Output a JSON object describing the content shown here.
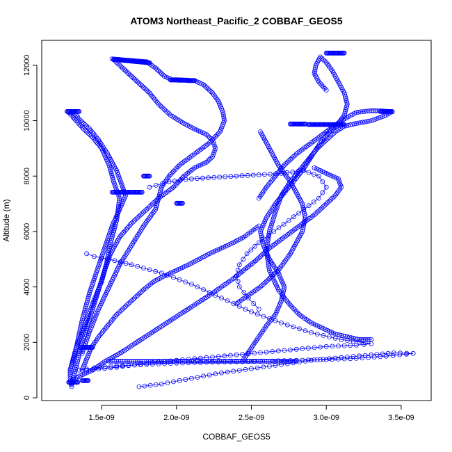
{
  "chart_data": {
    "type": "scatter",
    "title": "ATOM3 Northeast_Pacific_2 COBBAF_GEOS5",
    "xlabel": "COBBAF_GEOS5",
    "ylabel": "Altitude (m)",
    "xlim": [
      1.1e-09,
      3.7e-09
    ],
    "ylim": [
      -100,
      12900
    ],
    "xticks": [
      1.5e-09,
      2e-09,
      2.5e-09,
      3e-09,
      3.5e-09
    ],
    "xtick_labels": [
      "1.5e-09",
      "2.0e-09",
      "2.5e-09",
      "3.0e-09",
      "3.5e-09"
    ],
    "yticks": [
      0,
      2000,
      4000,
      6000,
      8000,
      10000,
      12000
    ],
    "ytick_labels": [
      "0",
      "2000",
      "4000",
      "6000",
      "8000",
      "10000",
      "12000"
    ],
    "marker": "open-circle",
    "color": "#0000ff",
    "grid": false,
    "series": [
      {
        "x": [
          1.3e-09,
          1.29e-09,
          1.29e-09,
          1.31e-09,
          1.33e-09,
          1.36e-09,
          1.4e-09,
          1.44e-09,
          1.5e-09,
          1.53e-09,
          1.56e-09,
          1.6e-09,
          1.62e-09,
          1.58e-09,
          1.55e-09,
          1.5e-09,
          1.44e-09,
          1.38e-09,
          1.33e-09,
          1.28e-09,
          1.27e-09,
          1.28e-09,
          1.3e-09,
          1.33e-09,
          1.36e-09,
          1.42e-09,
          1.48e-09,
          1.54e-09,
          1.6e-09,
          1.64e-09,
          1.66e-09,
          1.62e-09,
          1.57e-09,
          1.52e-09,
          1.47e-09,
          1.42e-09,
          1.37e-09,
          1.33e-09,
          1.29e-09
        ],
        "y": [
          400,
          700,
          1000,
          1400,
          1800,
          2200,
          2800,
          3400,
          4200,
          4800,
          5600,
          6400,
          7200,
          7800,
          8400,
          9000,
          9400,
          9700,
          10000,
          10300,
          10330,
          10320,
          10310,
          10200,
          10000,
          9700,
          9300,
          8800,
          8200,
          7600,
          7300,
          6800,
          6200,
          5400,
          4600,
          3800,
          2800,
          1800,
          1000
        ]
      },
      {
        "x": [
          1.58e-09,
          1.62e-09,
          1.68e-09,
          1.76e-09,
          1.82e-09,
          1.88e-09,
          1.96e-09,
          2.05e-09,
          2.12e-09,
          2.2e-09,
          2.24e-09,
          2.26e-09,
          2.24e-09,
          2.2e-09,
          2.12e-09,
          2.05e-09,
          1.98e-09,
          1.88e-09,
          1.8e-09,
          1.7e-09,
          1.62e-09,
          1.56e-09,
          1.52e-09,
          1.48e-09,
          1.44e-09,
          1.4e-09,
          1.36e-09,
          1.33e-09,
          1.3e-09
        ],
        "y": [
          12200,
          12000,
          11700,
          11300,
          11000,
          10600,
          10200,
          9900,
          9700,
          9500,
          9300,
          9000,
          8700,
          8500,
          8300,
          8000,
          7600,
          7200,
          6800,
          6300,
          5800,
          5200,
          4600,
          3900,
          3200,
          2500,
          1800,
          1100,
          500
        ]
      },
      {
        "x": [
          1.57e-09,
          1.62e-09,
          1.68e-09,
          1.75e-09,
          1.8e-09,
          1.86e-09,
          1.92e-09,
          1.97e-09,
          2.05e-09,
          2.12e-09,
          2.18e-09,
          2.24e-09,
          2.28e-09,
          2.31e-09,
          2.32e-09,
          2.29e-09,
          2.22e-09,
          2.12e-09,
          2.02e-09,
          1.95e-09,
          1.9e-09,
          1.88e-09,
          1.86e-09,
          1.78e-09,
          1.7e-09,
          1.62e-09,
          1.55e-09,
          1.48e-09,
          1.42e-09,
          1.37e-09
        ],
        "y": [
          12230,
          12210,
          12180,
          12150,
          12130,
          11900,
          11600,
          11480,
          11470,
          11450,
          11300,
          11000,
          10700,
          10300,
          10000,
          9600,
          9200,
          8800,
          8400,
          8000,
          7600,
          7200,
          6800,
          6200,
          5500,
          4800,
          4000,
          3200,
          2400,
          1600
        ]
      },
      {
        "x": [
          2.45e-09,
          2.5e-09,
          2.55e-09,
          2.6e-09,
          2.66e-09,
          2.7e-09,
          2.72e-09,
          2.68e-09,
          2.62e-09,
          2.58e-09,
          2.56e-09,
          2.6e-09,
          2.66e-09,
          2.72e-09,
          2.78e-09,
          2.84e-09,
          2.9e-09,
          2.96e-09,
          3.02e-09,
          3.08e-09,
          3.12e-09,
          3.14e-09,
          3.12e-09,
          3.08e-09,
          3.04e-09,
          3e-09,
          2.96e-09,
          2.93e-09,
          2.92e-09,
          2.95e-09,
          3e-09
        ],
        "y": [
          1400,
          1800,
          2200,
          2600,
          3000,
          3500,
          4000,
          4500,
          5000,
          5500,
          6000,
          6500,
          7000,
          7400,
          7800,
          8200,
          8700,
          9200,
          9600,
          9900,
          10200,
          10600,
          11000,
          11400,
          11800,
          12100,
          12300,
          12000,
          11700,
          11400,
          11100
        ]
      },
      {
        "x": [
          2.55e-09,
          2.6e-09,
          2.66e-09,
          2.72e-09,
          2.8e-09,
          2.9e-09,
          3e-09,
          3.1e-09,
          3.2e-09,
          3.3e-09,
          3.38e-09,
          3.44e-09,
          3.4e-09,
          3.3e-09,
          3.2e-09,
          3.12e-09,
          3.06e-09,
          3e-09,
          2.94e-09,
          2.88e-09,
          2.82e-09,
          2.76e-09,
          2.7e-09,
          2.66e-09,
          2.62e-09,
          2.6e-09,
          2.62e-09,
          2.68e-09,
          2.75e-09,
          2.82e-09,
          2.9e-09,
          2.98e-09,
          3.06e-09,
          3.14e-09,
          3.22e-09,
          3.3e-09
        ],
        "y": [
          7200,
          7600,
          8000,
          8400,
          8800,
          9200,
          9600,
          10000,
          10300,
          10360,
          10350,
          10320,
          10200,
          10000,
          9900,
          9800,
          9600,
          9300,
          9000,
          8600,
          8200,
          7800,
          7300,
          6700,
          6000,
          5300,
          4600,
          3900,
          3400,
          3000,
          2700,
          2500,
          2300,
          2200,
          2100,
          2100
        ]
      },
      {
        "x": [
          1.75e-09,
          1.9e-09,
          2.1e-09,
          2.3e-09,
          2.5e-09,
          2.7e-09,
          2.9e-09,
          3.1e-09,
          3.3e-09,
          3.45e-09,
          3.58e-09,
          3.4e-09,
          3.2e-09,
          3e-09,
          2.8e-09,
          2.6e-09,
          2.4e-09,
          2.2e-09,
          2e-09,
          1.8e-09,
          1.6e-09,
          1.45e-09,
          1.35e-09
        ],
        "y": [
          400,
          500,
          700,
          900,
          1050,
          1200,
          1350,
          1450,
          1550,
          1620,
          1600,
          1500,
          1420,
          1380,
          1350,
          1320,
          1300,
          1280,
          1250,
          1200,
          1150,
          1080,
          1000
        ]
      },
      {
        "x": [
          1.4e-09,
          1.6e-09,
          1.8e-09,
          2e-09,
          2.2e-09,
          2.4e-09,
          2.6e-09,
          2.8e-09,
          3e-09,
          3.2e-09,
          3.3e-09,
          3.1e-09,
          2.9e-09,
          2.7e-09,
          2.5e-09,
          2.3e-09,
          2.1e-09,
          1.9e-09,
          1.7e-09,
          1.55e-09,
          1.45e-09,
          1.4e-09
        ],
        "y": [
          1000,
          1100,
          1250,
          1350,
          1450,
          1550,
          1650,
          1750,
          1850,
          1900,
          1950,
          2100,
          2350,
          2700,
          3100,
          3600,
          4100,
          4500,
          4800,
          5000,
          5100,
          5200
        ]
      },
      {
        "x": [
          1.82e-09,
          1.95e-09,
          2.1e-09,
          2.25e-09,
          2.4e-09,
          2.55e-09,
          2.7e-09,
          2.85e-09,
          2.95e-09,
          3e-09,
          2.95e-09,
          2.85e-09,
          2.75e-09,
          2.65e-09,
          2.55e-09,
          2.47e-09,
          2.42e-09,
          2.4e-09,
          2.42e-09,
          2.48e-09,
          2.55e-09
        ],
        "y": [
          7600,
          7800,
          7900,
          7950,
          8000,
          8050,
          8100,
          8200,
          8000,
          7600,
          7200,
          6800,
          6400,
          6000,
          5600,
          5200,
          4800,
          4400,
          4000,
          3600,
          3200
        ]
      },
      {
        "x": [
          1.3e-09,
          1.36e-09,
          1.44e-09,
          1.52e-09,
          1.62e-09,
          1.72e-09,
          1.82e-09,
          1.92e-09,
          2.02e-09,
          2.12e-09,
          2.22e-09,
          2.3e-09,
          2.38e-09,
          2.46e-09,
          2.54e-09,
          2.62e-09,
          2.72e-09,
          2.82e-09,
          2.92e-09,
          3e-09,
          3.06e-09,
          3.1e-09,
          3.08e-09,
          3e-09,
          2.92e-09
        ],
        "y": [
          600,
          800,
          1000,
          1300,
          1600,
          1950,
          2300,
          2650,
          3000,
          3350,
          3700,
          4000,
          4300,
          4650,
          5000,
          5400,
          5800,
          6200,
          6600,
          7000,
          7300,
          7600,
          7900,
          8100,
          8300
        ]
      },
      {
        "x": [
          2.55e-09,
          2.5e-09,
          2.45e-09,
          2.38e-09,
          2.3e-09,
          2.22e-09,
          2.15e-09,
          2.08e-09,
          2e-09,
          1.92e-09,
          1.85e-09,
          1.78e-09,
          1.72e-09,
          1.66e-09,
          1.6e-09,
          1.54e-09,
          1.48e-09,
          1.43e-09,
          1.4e-09,
          1.37e-09
        ],
        "y": [
          6200,
          6000,
          5800,
          5600,
          5400,
          5200,
          5000,
          4800,
          4600,
          4400,
          4200,
          3900,
          3600,
          3300,
          3000,
          2600,
          2200,
          1800,
          1400,
          1000
        ]
      },
      {
        "x": [
          1.55e-09,
          1.6e-09,
          1.65e-09,
          1.7e-09,
          1.75e-09,
          1.8e-09,
          1.85e-09,
          1.9e-09,
          1.95e-09,
          2e-09,
          2.05e-09,
          2.1e-09,
          2.15e-09,
          2.2e-09,
          2.25e-09,
          2.3e-09,
          2.35e-09,
          2.4e-09,
          2.45e-09,
          2.5e-09,
          2.55e-09,
          2.6e-09,
          2.65e-09,
          2.7e-09,
          2.75e-09,
          2.8e-09
        ],
        "y": [
          1320,
          1320,
          1320,
          1320,
          1320,
          1320,
          1320,
          1320,
          1320,
          1320,
          1320,
          1320,
          1320,
          1320,
          1320,
          1320,
          1320,
          1320,
          1320,
          1320,
          1320,
          1320,
          1320,
          1320,
          1320,
          1320
        ]
      },
      {
        "x": [
          2.4e-09,
          2.48e-09,
          2.56e-09,
          2.62e-09,
          2.68e-09,
          2.72e-09,
          2.76e-09,
          2.8e-09,
          2.84e-09,
          2.86e-09,
          2.84e-09,
          2.8e-09,
          2.76e-09,
          2.72e-09,
          2.68e-09,
          2.64e-09,
          2.6e-09,
          2.56e-09
        ],
        "y": [
          3400,
          3700,
          4000,
          4300,
          4600,
          4900,
          5200,
          5600,
          6000,
          6500,
          7000,
          7400,
          7800,
          8100,
          8400,
          8800,
          9200,
          9600
        ]
      }
    ],
    "dense_clusters": [
      {
        "x": [
          1.27e-09,
          1.28e-09,
          1.29e-09,
          1.3e-09,
          1.31e-09,
          1.32e-09,
          1.33e-09,
          1.34e-09,
          1.35e-09
        ],
        "y": [
          10330,
          10330,
          10330,
          10330,
          10330,
          10330,
          10330,
          10330,
          10330
        ]
      },
      {
        "x": [
          1.58e-09,
          1.6e-09,
          1.62e-09,
          1.64e-09,
          1.66e-09,
          1.68e-09,
          1.7e-09,
          1.72e-09,
          1.74e-09,
          1.76e-09,
          1.78e-09,
          1.8e-09,
          1.82e-09
        ],
        "y": [
          12210,
          12200,
          12190,
          12180,
          12170,
          12160,
          12150,
          12140,
          12130,
          12120,
          12110,
          12100,
          12090
        ]
      },
      {
        "x": [
          1.96e-09,
          1.98e-09,
          2e-09,
          2.02e-09,
          2.04e-09,
          2.06e-09,
          2.08e-09,
          2.1e-09,
          2.12e-09
        ],
        "y": [
          11470,
          11470,
          11470,
          11460,
          11460,
          11460,
          11450,
          11450,
          11450
        ]
      },
      {
        "x": [
          1.57e-09,
          1.59e-09,
          1.61e-09,
          1.63e-09,
          1.65e-09,
          1.67e-09,
          1.69e-09,
          1.71e-09,
          1.73e-09,
          1.75e-09,
          1.77e-09
        ],
        "y": [
          7420,
          7420,
          7420,
          7420,
          7420,
          7420,
          7420,
          7420,
          7420,
          7420,
          7420
        ]
      },
      {
        "x": [
          1.78e-09,
          1.8e-09,
          1.82e-09
        ],
        "y": [
          8000,
          8000,
          8000
        ]
      },
      {
        "x": [
          2e-09,
          2.02e-09,
          2.04e-09
        ],
        "y": [
          7020,
          7020,
          7020
        ]
      },
      {
        "x": [
          2.76e-09,
          2.78e-09,
          2.8e-09,
          2.82e-09,
          2.84e-09,
          2.86e-09
        ],
        "y": [
          9880,
          9880,
          9880,
          9880,
          9880,
          9880
        ]
      },
      {
        "x": [
          2.88e-09,
          2.9e-09,
          2.92e-09,
          2.94e-09,
          2.96e-09,
          2.98e-09,
          3e-09,
          3.02e-09,
          3.04e-09,
          3.06e-09,
          3.08e-09,
          3.1e-09,
          3.12e-09
        ],
        "y": [
          9860,
          9860,
          9860,
          9860,
          9860,
          9860,
          9860,
          9860,
          9860,
          9860,
          9860,
          9860,
          9860
        ]
      },
      {
        "x": [
          3e-09,
          3.02e-09,
          3.04e-09,
          3.06e-09,
          3.08e-09,
          3.1e-09,
          3.12e-09
        ],
        "y": [
          12440,
          12440,
          12440,
          12440,
          12440,
          12440,
          12440
        ]
      },
      {
        "x": [
          3.36e-09,
          3.38e-09,
          3.4e-09,
          3.42e-09,
          3.44e-09
        ],
        "y": [
          10330,
          10330,
          10330,
          10330,
          10330
        ]
      },
      {
        "x": [
          1.36e-09,
          1.38e-09,
          1.4e-09,
          1.42e-09,
          1.44e-09
        ],
        "y": [
          1820,
          1820,
          1820,
          1820,
          1820
        ]
      },
      {
        "x": [
          1.37e-09,
          1.39e-09,
          1.41e-09
        ],
        "y": [
          620,
          620,
          620
        ]
      },
      {
        "x": [
          1.28e-09,
          1.3e-09,
          1.32e-09,
          1.34e-09
        ],
        "y": [
          560,
          560,
          560,
          560
        ]
      }
    ]
  }
}
